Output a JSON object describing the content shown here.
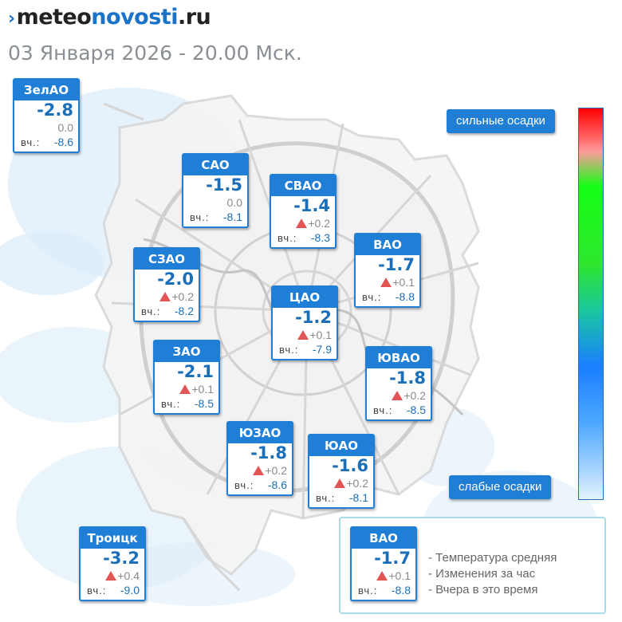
{
  "header": {
    "brand_part1": "meteo",
    "brand_part2": "novosti",
    "brand_part3": ".ru",
    "date_line": "03 Января 2026 - 20.00 Мск."
  },
  "districts": [
    {
      "name": "ЗелАО",
      "temp": "-2.8",
      "change": "0.0",
      "trend": "none",
      "yest_label": "вч.:",
      "yest_value": "-8.6"
    },
    {
      "name": "САО",
      "temp": "-1.5",
      "change": "0.0",
      "trend": "none",
      "yest_label": "вч.:",
      "yest_value": "-8.1"
    },
    {
      "name": "СВАО",
      "temp": "-1.4",
      "change": "+0.2",
      "trend": "up",
      "yest_label": "вч.:",
      "yest_value": "-8.3"
    },
    {
      "name": "ВАО",
      "temp": "-1.7",
      "change": "+0.1",
      "trend": "up",
      "yest_label": "вч.:",
      "yest_value": "-8.8"
    },
    {
      "name": "СЗАО",
      "temp": "-2.0",
      "change": "+0.2",
      "trend": "up",
      "yest_label": "вч.:",
      "yest_value": "-8.2"
    },
    {
      "name": "ЦАО",
      "temp": "-1.2",
      "change": "+0.1",
      "trend": "up",
      "yest_label": "вч.:",
      "yest_value": "-7.9"
    },
    {
      "name": "ЗАО",
      "temp": "-2.1",
      "change": "+0.1",
      "trend": "up",
      "yest_label": "вч.:",
      "yest_value": "-8.5"
    },
    {
      "name": "ЮВАО",
      "temp": "-1.8",
      "change": "+0.2",
      "trend": "up",
      "yest_label": "вч.:",
      "yest_value": "-8.5"
    },
    {
      "name": "ЮЗАО",
      "temp": "-1.8",
      "change": "+0.2",
      "trend": "up",
      "yest_label": "вч.:",
      "yest_value": "-8.6"
    },
    {
      "name": "ЮАО",
      "temp": "-1.6",
      "change": "+0.2",
      "trend": "up",
      "yest_label": "вч.:",
      "yest_value": "-8.1"
    },
    {
      "name": "Троицк",
      "temp": "-3.2",
      "change": "+0.4",
      "trend": "up",
      "yest_label": "вч.:",
      "yest_value": "-9.0"
    }
  ],
  "scale": {
    "high_label": "сильные осадки",
    "low_label": "слабые осадки"
  },
  "legend": {
    "sample": {
      "name": "ВАО",
      "temp": "-1.7",
      "change": "+0.1",
      "trend": "up",
      "yest_label": "вч.:",
      "yest_value": "-8.8"
    },
    "line1": "- Температура средняя",
    "line2": "- Изменения за час",
    "line3": "- Вчера в это время"
  },
  "colors": {
    "accent": "#1f7ed6",
    "temp_text": "#1a6fb8",
    "trend_up": "#e25555",
    "precip_light": "#d6e9f8",
    "road": "#d4d4d4"
  }
}
